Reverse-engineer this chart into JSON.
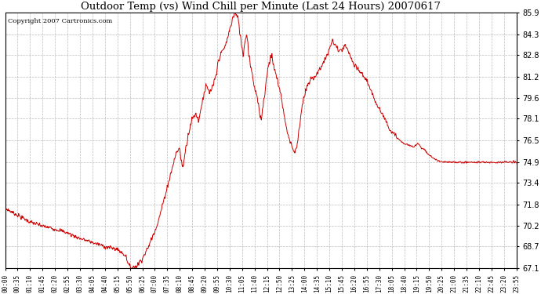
{
  "title": "Outdoor Temp (vs) Wind Chill per Minute (Last 24 Hours) 20070617",
  "copyright": "Copyright 2007 Cartronics.com",
  "line_color": "#cc0000",
  "background_color": "#ffffff",
  "grid_color": "#bbbbbb",
  "yticks": [
    67.1,
    68.7,
    70.2,
    71.8,
    73.4,
    74.9,
    76.5,
    78.1,
    79.6,
    81.2,
    82.8,
    84.3,
    85.9
  ],
  "ymin": 67.1,
  "ymax": 85.9,
  "xtick_labels": [
    "00:00",
    "00:35",
    "01:10",
    "01:45",
    "02:20",
    "02:55",
    "03:30",
    "04:05",
    "04:40",
    "05:15",
    "05:50",
    "06:25",
    "07:00",
    "07:35",
    "08:10",
    "08:45",
    "09:20",
    "09:55",
    "10:30",
    "11:05",
    "11:40",
    "12:15",
    "12:50",
    "13:25",
    "14:00",
    "14:35",
    "15:10",
    "15:45",
    "16:20",
    "16:55",
    "17:30",
    "18:05",
    "18:40",
    "19:15",
    "19:50",
    "20:25",
    "21:00",
    "21:35",
    "22:10",
    "22:45",
    "23:20",
    "23:55"
  ],
  "figsize": [
    6.9,
    3.75
  ],
  "dpi": 100
}
